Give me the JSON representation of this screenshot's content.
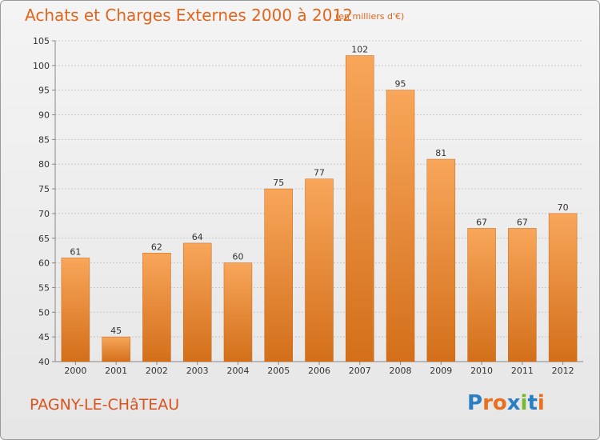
{
  "header": {
    "title": "Achats et Charges Externes 2000 à 2012",
    "subtitle": "(en milliers d'€)"
  },
  "footer": {
    "place": "PAGNY-LE-CHâTEAU",
    "logo_text": "Proxiti",
    "logo_letters": [
      {
        "char": "P",
        "color": "#2a7fc4"
      },
      {
        "char": "r",
        "color": "#e8701f"
      },
      {
        "char": "o",
        "color": "#e8701f"
      },
      {
        "char": "x",
        "color": "#2a7fc4"
      },
      {
        "char": "i",
        "color": "#77b92f"
      },
      {
        "char": "t",
        "color": "#2a7fc4"
      },
      {
        "char": "i",
        "color": "#e8701f"
      }
    ]
  },
  "colors": {
    "accent": "#e0661e",
    "bar_top": "#f8a65a",
    "bar_bottom": "#d36f1a",
    "grid": "#c8c8c8"
  },
  "chart_data": {
    "type": "bar",
    "title": "Achats et Charges Externes 2000 à 2012",
    "subtitle": "(en milliers d'€)",
    "xlabel": "",
    "ylabel": "",
    "categories": [
      "2000",
      "2001",
      "2002",
      "2003",
      "2004",
      "2005",
      "2006",
      "2007",
      "2008",
      "2009",
      "2010",
      "2011",
      "2012"
    ],
    "values": [
      61,
      45,
      62,
      64,
      60,
      75,
      77,
      102,
      95,
      81,
      67,
      67,
      70
    ],
    "ylim": [
      40,
      105
    ],
    "yticks": [
      40,
      45,
      50,
      55,
      60,
      65,
      70,
      75,
      80,
      85,
      90,
      95,
      100,
      105
    ],
    "grid": true,
    "data_labels": true
  }
}
